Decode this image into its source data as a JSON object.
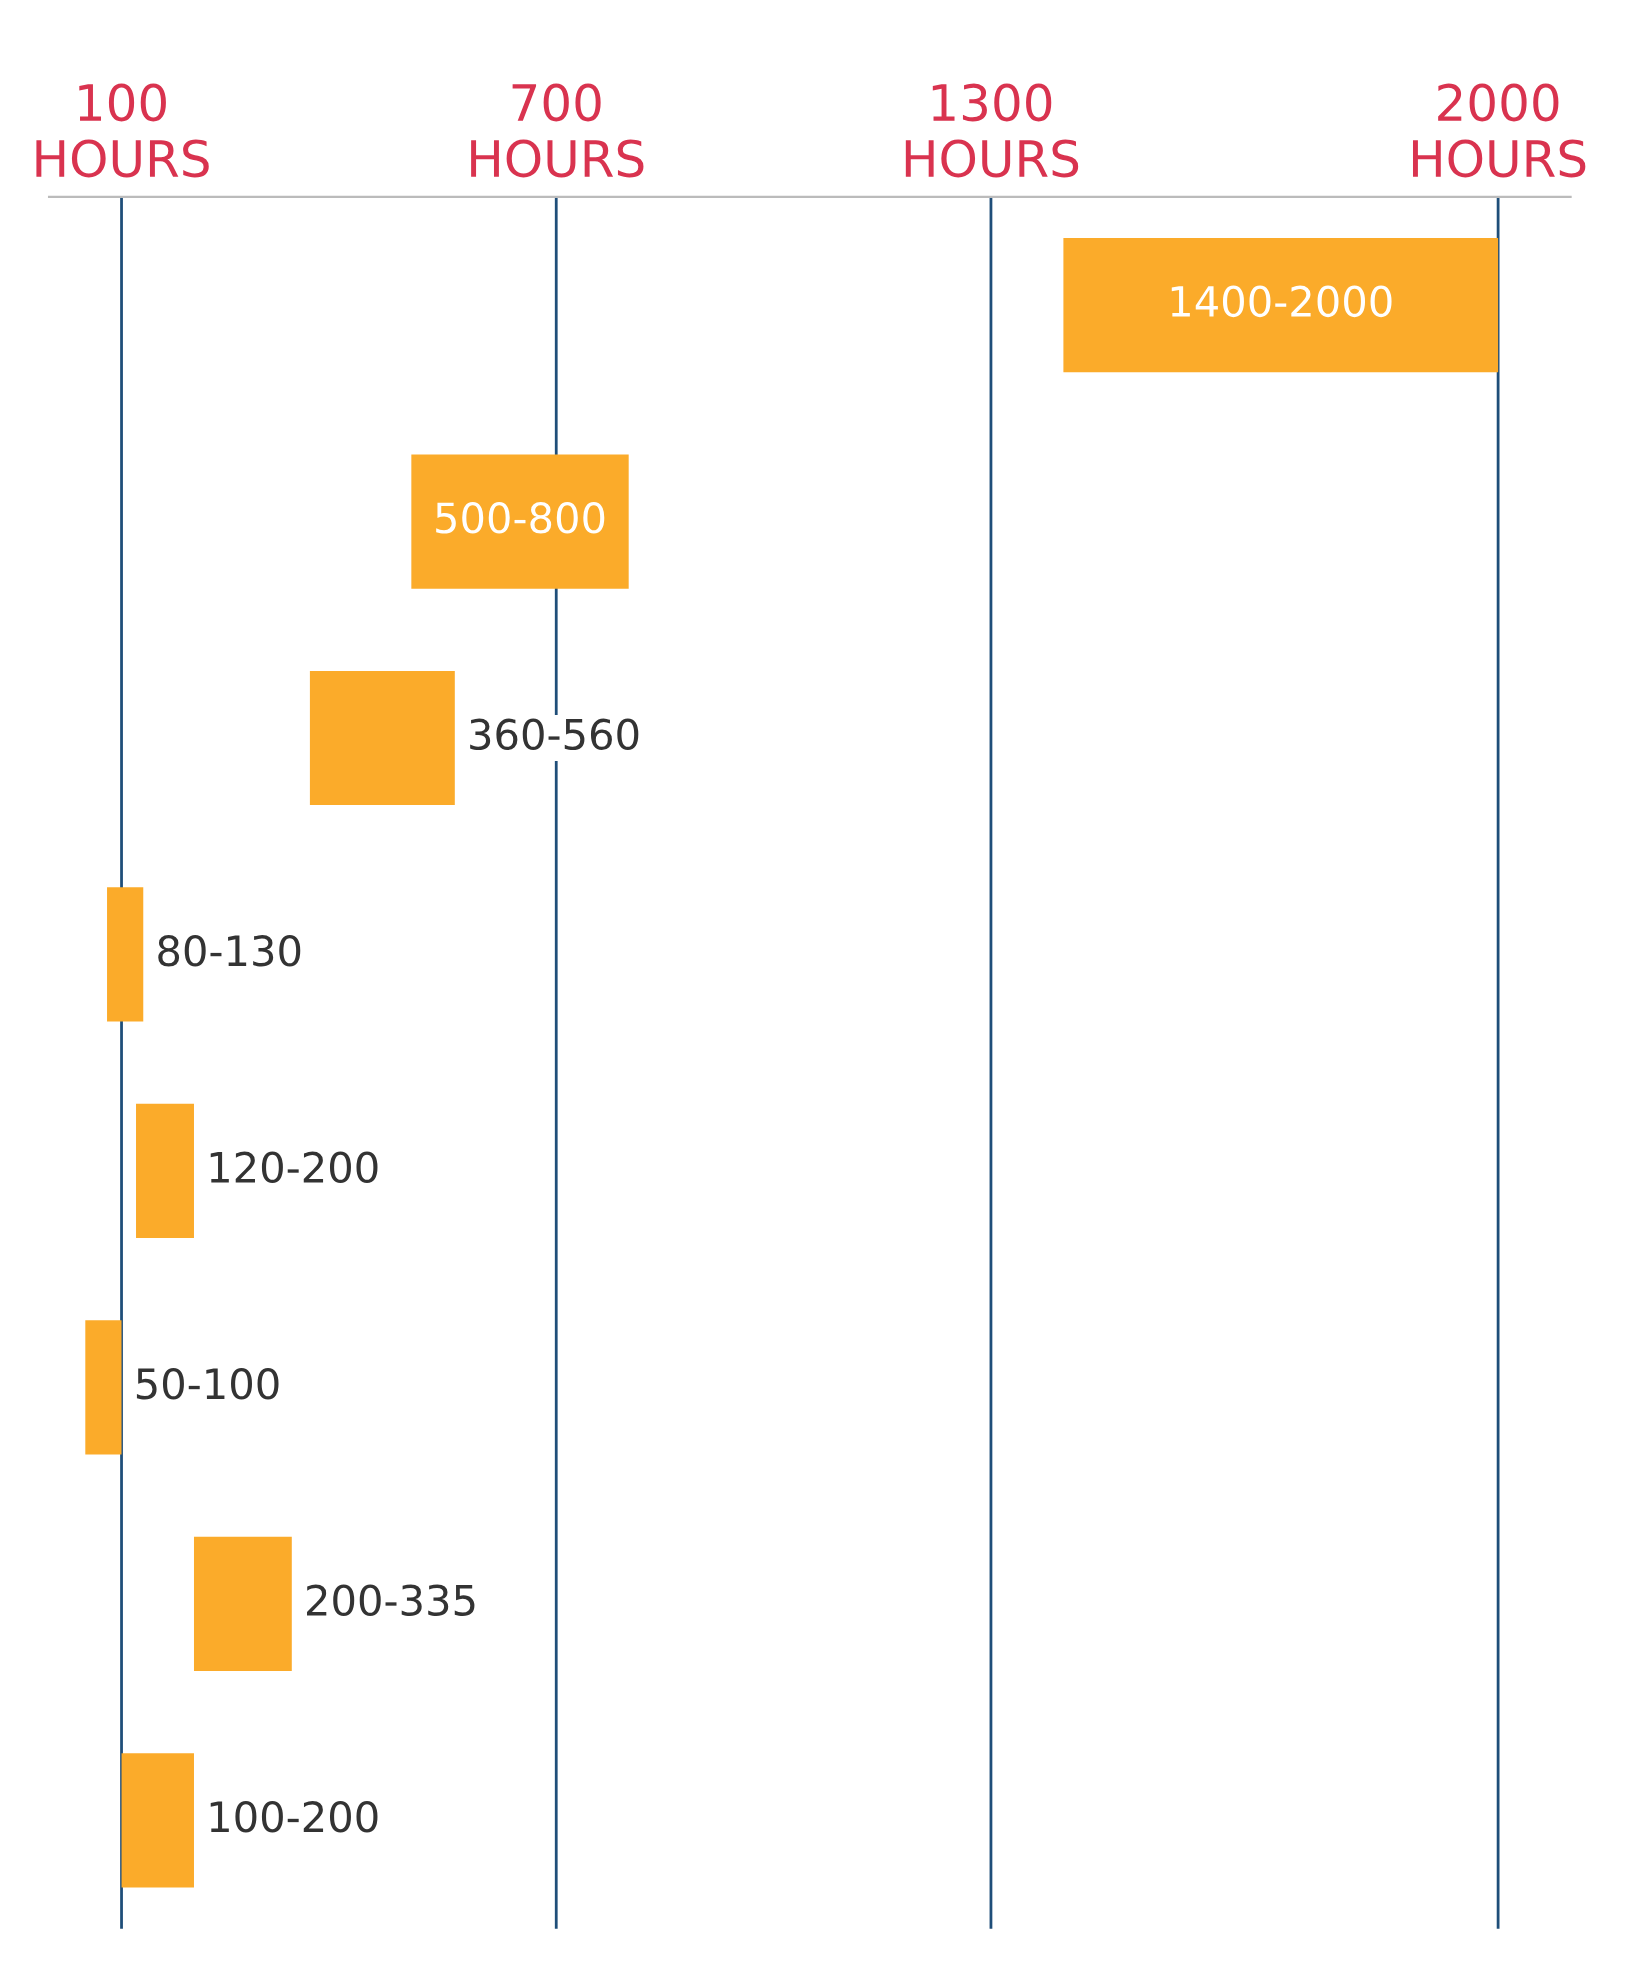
{
  "chart_data": {
    "type": "bar",
    "orientation": "horizontal",
    "categories": [
      null,
      null,
      null,
      null,
      null,
      null,
      null,
      null
    ],
    "base": [
      1400,
      500,
      360,
      80,
      120,
      50,
      200,
      100
    ],
    "values": [
      600,
      300,
      200,
      50,
      80,
      50,
      135,
      100
    ],
    "value_labels": [
      "1400-2000",
      "500-800",
      "360-560",
      "80-130",
      "120-200",
      "50-100",
      "200-335",
      "100-200"
    ],
    "color": "#fbab2a",
    "xlim": [
      0,
      2100
    ],
    "xticks": [
      {
        "value": 100,
        "label": "100\nHOURS"
      },
      {
        "value": 700,
        "label": "700\nHOURS"
      },
      {
        "value": 1300,
        "label": "1300\nHOURS"
      },
      {
        "value": 2000,
        "label": "2000\nHOURS"
      }
    ],
    "grid": "x",
    "tick_labels": "x"
  }
}
